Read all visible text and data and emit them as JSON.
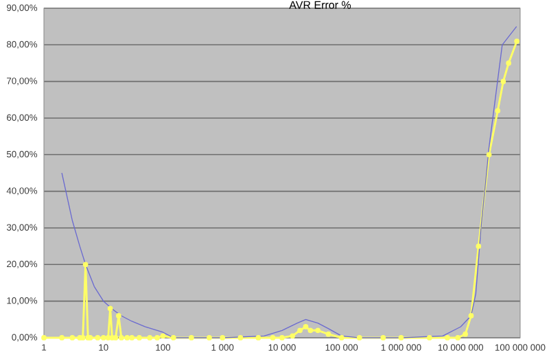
{
  "chart_data": {
    "type": "line",
    "title": "AVR Error %",
    "log": "x",
    "grid": "y",
    "legend": false,
    "xlim": [
      1,
      100000000
    ],
    "ylim": [
      0,
      90
    ],
    "xticks": [
      {
        "value": 1,
        "label": "1"
      },
      {
        "value": 10,
        "label": "10"
      },
      {
        "value": 100,
        "label": "100"
      },
      {
        "value": 1000,
        "label": "1 000"
      },
      {
        "value": 10000,
        "label": "10 000"
      },
      {
        "value": 100000,
        "label": "100 000"
      },
      {
        "value": 1000000,
        "label": "1 000 000"
      },
      {
        "value": 10000000,
        "label": "10 000 000"
      },
      {
        "value": 100000000,
        "label": "100 000 000"
      }
    ],
    "yticks": [
      {
        "value": 0,
        "label": "0,00%"
      },
      {
        "value": 10,
        "label": "10,00%"
      },
      {
        "value": 20,
        "label": "20,00%"
      },
      {
        "value": 30,
        "label": "30,00%"
      },
      {
        "value": 40,
        "label": "40,00%"
      },
      {
        "value": 50,
        "label": "50,00%"
      },
      {
        "value": 60,
        "label": "60,00%"
      },
      {
        "value": 70,
        "label": "70,00%"
      },
      {
        "value": 80,
        "label": "80,00%"
      },
      {
        "value": 90,
        "label": "90,00%"
      }
    ],
    "series": [
      {
        "color": "#6a6ad0",
        "marker": "none",
        "x": [
          2,
          3,
          4,
          5,
          7,
          10,
          15,
          20,
          30,
          50,
          100,
          150,
          1000,
          5000,
          10000,
          18000,
          25000,
          40000,
          60000,
          100000,
          200000,
          1000000,
          5000000,
          10000000,
          15000000,
          18000000,
          22000000,
          30000000,
          50000000,
          87000000
        ],
        "values": [
          45,
          32,
          25,
          20,
          14,
          10,
          7.5,
          6,
          4.5,
          3,
          1.5,
          0,
          0,
          0.5,
          2,
          4,
          5,
          4,
          2.5,
          0.5,
          0,
          0,
          0.5,
          3,
          6,
          12,
          30,
          52,
          80,
          85
        ]
      },
      {
        "color": "#ffff66",
        "marker": "circle",
        "x": [
          1,
          2,
          3,
          4,
          4.5,
          5,
          5.5,
          6,
          8,
          10,
          12,
          13,
          14,
          16,
          18,
          20,
          25,
          30,
          40,
          60,
          80,
          100,
          150,
          300,
          600,
          1000,
          2000,
          4000,
          7000,
          10000,
          15000,
          20000,
          25000,
          30000,
          40000,
          60000,
          100000,
          200000,
          500000,
          1000000,
          3000000,
          6000000,
          9000000,
          12000000,
          15000000,
          20000000,
          30000000,
          42000000,
          52000000,
          64000000,
          88000000
        ],
        "values": [
          0,
          0,
          0,
          0,
          0,
          20,
          0,
          0,
          0,
          0,
          0,
          8,
          0,
          0,
          6,
          0,
          0,
          0,
          0,
          0,
          0,
          0.5,
          0,
          0,
          0,
          0,
          0,
          0,
          0,
          0,
          0.5,
          2,
          3,
          2,
          2,
          1,
          0,
          0,
          0,
          0,
          0,
          0,
          0,
          1,
          6,
          25,
          50,
          62,
          70,
          75,
          81
        ]
      }
    ]
  }
}
